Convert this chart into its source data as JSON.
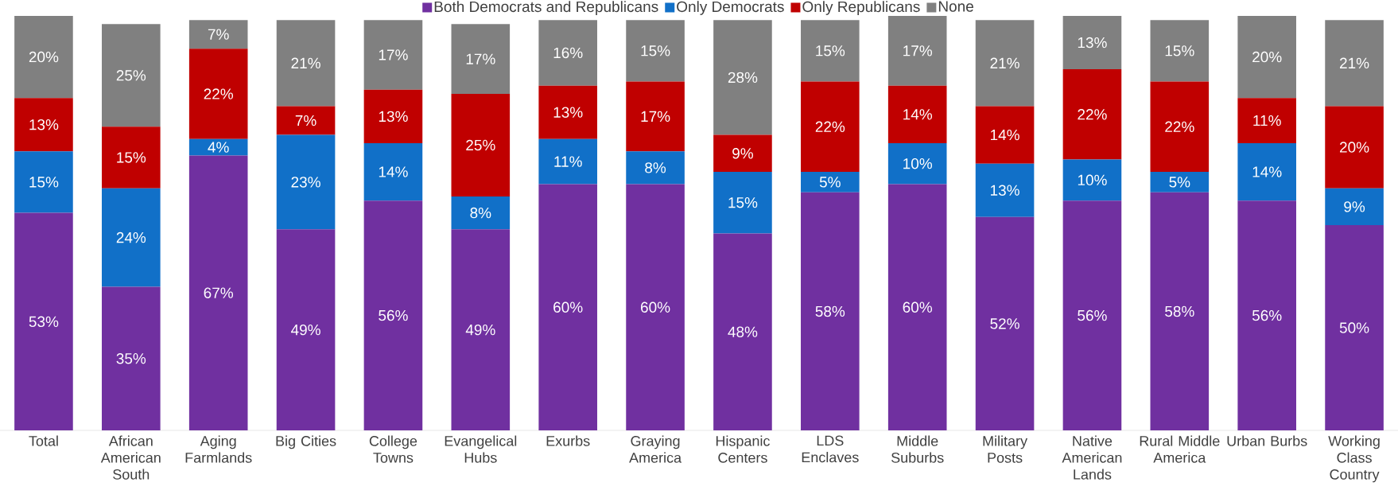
{
  "chart_data": {
    "type": "bar",
    "stacked": true,
    "legend": "top",
    "categories": [
      "Total",
      "African American South",
      "Aging Farmlands",
      "Big Cities",
      "College Towns",
      "Evangelical Hubs",
      "Exurbs",
      "Graying America",
      "Hispanic Centers",
      "LDS Enclaves",
      "Middle Suburbs",
      "Military Posts",
      "Native American Lands",
      "Rural Middle America",
      "Urban Burbs",
      "Working Class Country"
    ],
    "series": [
      {
        "name": "Both Democrats and Republicans",
        "color": "#7030a0",
        "values": [
          53,
          35,
          67,
          49,
          56,
          49,
          60,
          60,
          48,
          58,
          60,
          52,
          56,
          58,
          56,
          50
        ],
        "value_labels": [
          "53%",
          "35%",
          "67%",
          "49%",
          "56%",
          "49%",
          "60%",
          "60%",
          "48%",
          "58%",
          "60%",
          "52%",
          "56%",
          "58%",
          "56%",
          "50%"
        ]
      },
      {
        "name": "Only Democrats",
        "color": "#1170c8",
        "values": [
          15,
          24,
          4,
          23,
          14,
          8,
          11,
          8,
          15,
          5,
          10,
          13,
          10,
          5,
          14,
          9
        ],
        "value_labels": [
          "15%",
          "24%",
          "4%",
          "23%",
          "14%",
          "8%",
          "11%",
          "8%",
          "15%",
          "5%",
          "10%",
          "13%",
          "10%",
          "5%",
          "14%",
          "9%"
        ]
      },
      {
        "name": "Only Republicans",
        "color": "#c00000",
        "values": [
          13,
          15,
          22,
          7,
          13,
          25,
          13,
          17,
          9,
          22,
          14,
          14,
          22,
          22,
          11,
          20
        ],
        "value_labels": [
          "13%",
          "15%",
          "22%",
          "7%",
          "13%",
          "25%",
          "13%",
          "17%",
          "9%",
          "22%",
          "14%",
          "14%",
          "22%",
          "22%",
          "11%",
          "20%"
        ]
      },
      {
        "name": "None",
        "color": "#808080",
        "values": [
          20,
          25,
          7,
          21,
          17,
          17,
          16,
          15,
          28,
          15,
          17,
          21,
          13,
          15,
          20,
          21
        ],
        "value_labels": [
          "20%",
          "25%",
          "7%",
          "21%",
          "17%",
          "17%",
          "16%",
          "15%",
          "28%",
          "15%",
          "17%",
          "21%",
          "13%",
          "15%",
          "20%",
          "21%"
        ]
      }
    ]
  }
}
